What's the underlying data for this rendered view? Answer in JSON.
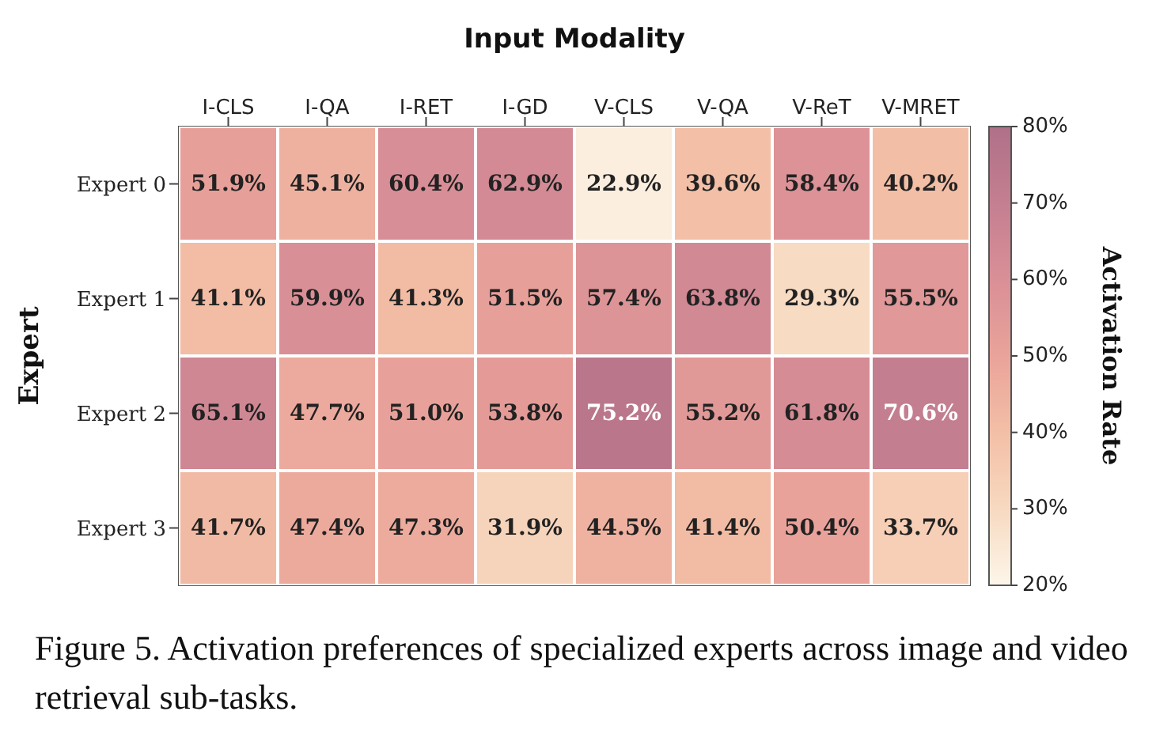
{
  "chart_data": {
    "type": "heatmap",
    "title": "Input Modality",
    "ylabel": "Expert",
    "clabel": "Activation Rate",
    "categories": [
      "I-CLS",
      "I-QA",
      "I-RET",
      "I-GD",
      "V-CLS",
      "V-QA",
      "V-ReT",
      "V-MRET"
    ],
    "y_categories": [
      "Expert 0",
      "Expert 1",
      "Expert 2",
      "Expert 3"
    ],
    "cells": [
      [
        51.9,
        45.1,
        60.4,
        62.9,
        22.9,
        39.6,
        58.4,
        40.2
      ],
      [
        41.1,
        59.9,
        41.3,
        51.5,
        57.4,
        63.8,
        29.3,
        55.5
      ],
      [
        65.1,
        47.7,
        51.0,
        53.8,
        75.2,
        55.2,
        61.8,
        70.6
      ],
      [
        41.7,
        47.4,
        47.3,
        31.9,
        44.5,
        41.4,
        50.4,
        33.7
      ]
    ],
    "cell_labels": [
      [
        "51.9%",
        "45.1%",
        "60.4%",
        "62.9%",
        "22.9%",
        "39.6%",
        "58.4%",
        "40.2%"
      ],
      [
        "41.1%",
        "59.9%",
        "41.3%",
        "51.5%",
        "57.4%",
        "63.8%",
        "29.3%",
        "55.5%"
      ],
      [
        "65.1%",
        "47.7%",
        "51.0%",
        "53.8%",
        "75.2%",
        "55.2%",
        "61.8%",
        "70.6%"
      ],
      [
        "41.7%",
        "47.4%",
        "47.3%",
        "31.9%",
        "44.5%",
        "41.4%",
        "50.4%",
        "33.7%"
      ]
    ],
    "clim": [
      20,
      80
    ],
    "cticks": [
      {
        "value": 20,
        "label": "20%"
      },
      {
        "value": 30,
        "label": "30%"
      },
      {
        "value": 40,
        "label": "40%"
      },
      {
        "value": 50,
        "label": "50%"
      },
      {
        "value": 60,
        "label": "60%"
      },
      {
        "value": 70,
        "label": "70%"
      },
      {
        "value": 80,
        "label": "80%"
      }
    ],
    "annotations": [
      "Figure 5. Activation preferences of specialized experts across image and video retrieval sub-tasks."
    ]
  }
}
